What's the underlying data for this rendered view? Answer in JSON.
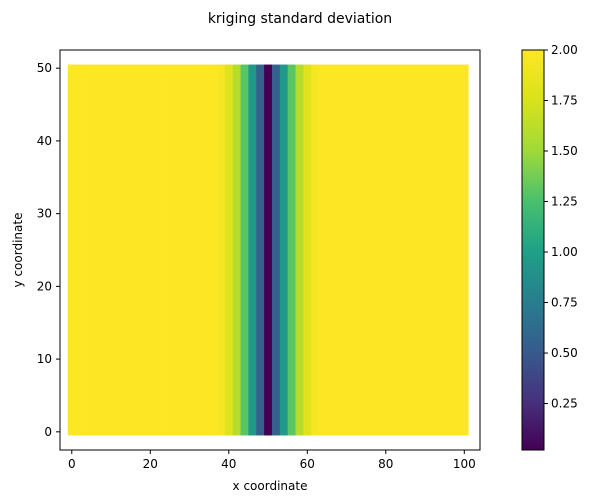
{
  "chart_data": {
    "type": "heatmap",
    "title": "kriging standard deviation",
    "xlabel": "x coordinate",
    "ylabel": "y coordinate",
    "xlim": [
      -3,
      104
    ],
    "ylim": [
      -2.5,
      52.5
    ],
    "x_ticks": [
      "0",
      "20",
      "40",
      "60",
      "80",
      "100"
    ],
    "y_ticks": [
      "0",
      "10",
      "20",
      "30",
      "40",
      "50"
    ],
    "x_tick_values": [
      0,
      20,
      40,
      60,
      80,
      100
    ],
    "y_tick_values": [
      0,
      10,
      20,
      30,
      40,
      50
    ],
    "grid": false,
    "colormap": "viridis",
    "cell_extent": {
      "x": [
        -1,
        101
      ],
      "y": [
        -0.5,
        50.5
      ]
    },
    "x_centers": [
      0,
      2,
      4,
      6,
      8,
      10,
      12,
      14,
      16,
      18,
      20,
      22,
      24,
      26,
      28,
      30,
      32,
      34,
      36,
      38,
      40,
      42,
      44,
      46,
      48,
      50,
      52,
      54,
      56,
      58,
      60,
      62,
      64,
      66,
      68,
      70,
      72,
      74,
      76,
      78,
      80,
      82,
      84,
      86,
      88,
      90,
      92,
      94,
      96,
      98,
      100
    ],
    "std_by_x": [
      2.0,
      2.0,
      2.0,
      2.0,
      2.0,
      2.0,
      2.0,
      2.0,
      2.0,
      2.0,
      2.0,
      2.0,
      2.0,
      2.0,
      2.0,
      2.0,
      2.0,
      2.0,
      2.0,
      1.95,
      1.8,
      1.6,
      1.3,
      0.95,
      0.55,
      0.02,
      0.55,
      0.95,
      1.3,
      1.6,
      1.8,
      1.95,
      2.0,
      2.0,
      2.0,
      2.0,
      2.0,
      2.0,
      2.0,
      2.0,
      2.0,
      2.0,
      2.0,
      2.0,
      2.0,
      2.0,
      2.0,
      2.0,
      2.0,
      2.0,
      2.0
    ],
    "colorbar": {
      "vmin": 0.02,
      "vmax": 2.0,
      "tick_values": [
        0.25,
        0.5,
        0.75,
        1.0,
        1.25,
        1.5,
        1.75,
        2.0
      ],
      "tick_labels": [
        "0.25",
        "0.50",
        "0.75",
        "1.00",
        "1.25",
        "1.50",
        "1.75",
        "2.00"
      ]
    }
  }
}
